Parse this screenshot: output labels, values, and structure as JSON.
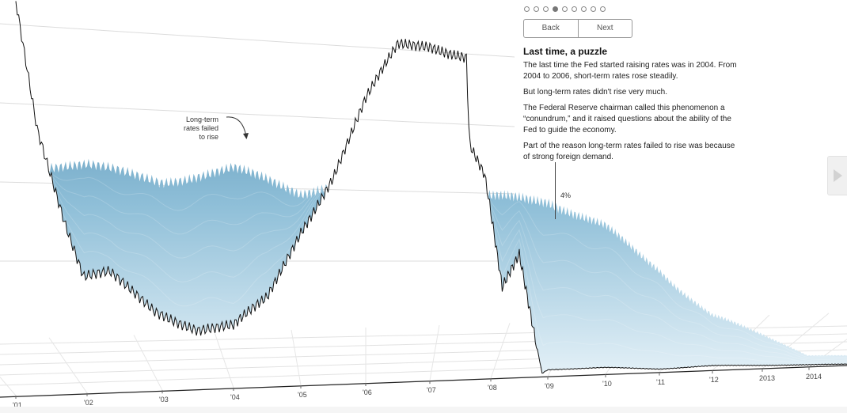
{
  "nav": {
    "slides": 9,
    "active_slide": 4,
    "back_label": "Back",
    "next_label": "Next"
  },
  "story": {
    "title": "Last time, a puzzle",
    "paragraphs": [
      "The last time the Fed started raising rates was in 2004. From 2004 to 2006, short-term rates rose steadily.",
      "But long-term rates didn't rise very much.",
      "The Federal Reserve chairman called this phenomenon a “conundrum,” and it raised questions about the ability of the Fed to guide the economy.",
      "Part of the reason long-term rates failed to rise was because of strong foreign demand."
    ]
  },
  "annotation": {
    "lines": [
      "Long-term",
      "rates failed",
      "to rise"
    ]
  },
  "colors": {
    "surface_dark": "#3f7fa6",
    "surface_light": "#d9ebf4",
    "short_term_line": "#111111"
  },
  "chart_data": {
    "type": "area",
    "title": "",
    "y_label": "4%",
    "x_ticks": [
      "'01",
      "'02",
      "'03",
      "'04",
      "'05",
      "'06",
      "'07",
      "'08",
      "'09",
      "'10",
      "'11",
      "'12",
      "2013",
      "2014"
    ],
    "series": [
      {
        "key": "short_term",
        "x": [
          2001.0,
          2001.3,
          2001.7,
          2001.95,
          2002.3,
          2002.9,
          2003.5,
          2004.0,
          2004.5,
          2005.0,
          2005.5,
          2006.0,
          2006.5,
          2007.0,
          2007.6,
          2007.65,
          2007.9,
          2008.2,
          2008.5,
          2008.9,
          2009.0,
          2010.0,
          2011.0,
          2012.0,
          2013.0,
          2014.0,
          2014.9
        ],
        "y": [
          5.9,
          4.0,
          2.5,
          1.7,
          1.75,
          1.2,
          0.9,
          0.9,
          1.3,
          2.3,
          3.1,
          4.2,
          5.0,
          5.0,
          4.8,
          3.5,
          3.0,
          1.3,
          1.8,
          0.05,
          0.1,
          0.1,
          0.05,
          0.07,
          0.05,
          0.03,
          0.02
        ]
      },
      {
        "key": "long_term",
        "x": [
          2001,
          2002,
          2003,
          2004,
          2005,
          2006,
          2007,
          2008,
          2009,
          2010,
          2011,
          2012,
          2013,
          2014,
          2014.9
        ],
        "y": [
          5.5,
          5.4,
          5.0,
          5.2,
          4.6,
          5.0,
          4.9,
          4.3,
          4.2,
          4.3,
          3.9,
          2.9,
          3.2,
          3.3,
          3.0
        ]
      }
    ]
  }
}
